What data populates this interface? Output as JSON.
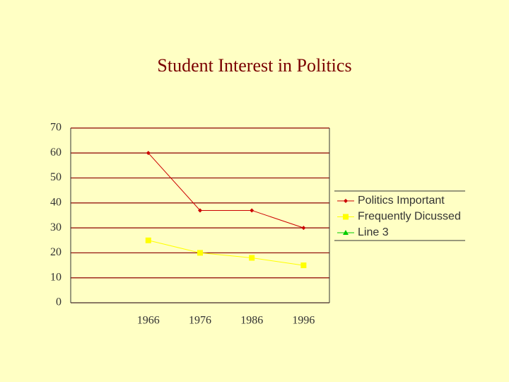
{
  "chart_data": {
    "type": "line",
    "title": "Student Interest in Politics",
    "categories": [
      null,
      "1966",
      "1976",
      "1986",
      "1996"
    ],
    "series": [
      {
        "name": "Politics Important",
        "color": "#cc0000",
        "marker": "diamond",
        "values": [
          null,
          60,
          37,
          37,
          30
        ]
      },
      {
        "name": "Frequently Dicussed",
        "color": "#ffff00",
        "marker": "square",
        "values": [
          null,
          25,
          20,
          18,
          15
        ]
      },
      {
        "name": "Line 3",
        "color": "#00cc00",
        "marker": "triangle",
        "values": [
          null,
          null,
          null,
          null,
          null
        ]
      }
    ],
    "ylim": [
      0,
      70
    ],
    "yticks": [
      0,
      10,
      20,
      30,
      40,
      50,
      60,
      70
    ],
    "grid": true,
    "legend": "right"
  }
}
